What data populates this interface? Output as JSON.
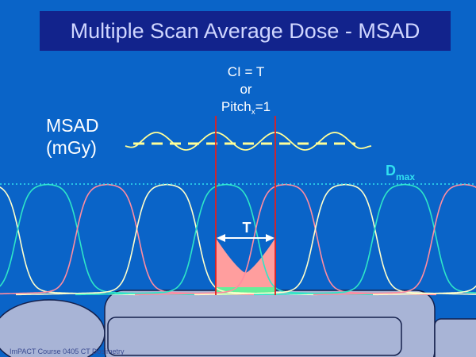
{
  "title": "Multiple Scan Average Dose - MSAD",
  "ci_label": {
    "line1": "CI = T",
    "line2": "or",
    "line3_main": "Pitch",
    "line3_sub": "x",
    "line3_end": "=1"
  },
  "msad_label": {
    "line1": "MSAD",
    "line2": "(mGy)"
  },
  "dmax_label": {
    "main": "D",
    "sub": "max"
  },
  "t_label": "T",
  "footer_text": "ImPACT Course 0405 CT Dosimetry",
  "colors": {
    "background": "#0a64c8",
    "title_bar": "#12238c",
    "profile_colors": [
      "#ffffcc",
      "#2ee6c8",
      "#ff8ca0"
    ],
    "dmax_line": "#30e0f0",
    "average_line": "#ffff99",
    "boundary_lines": "#e02020",
    "filled_area": "#ff9e9e",
    "green_strip": "#66ee99"
  }
}
